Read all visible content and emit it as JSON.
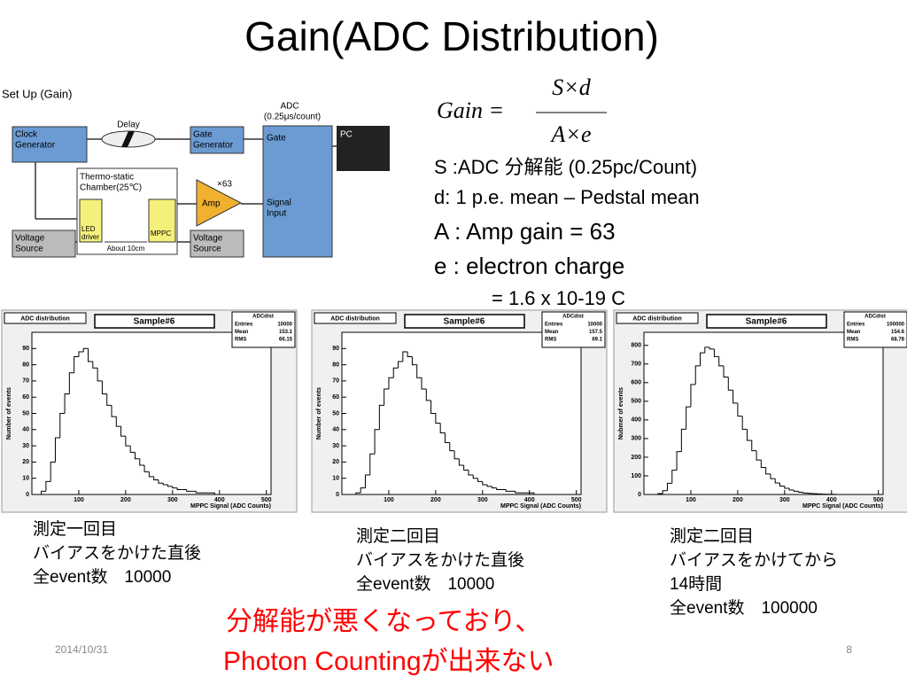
{
  "title": "Gain(ADC Distribution)",
  "setup": {
    "title": "Set Up (Gain)",
    "clock": [
      "Clock",
      "Generator"
    ],
    "delay": "Delay",
    "gate_generator": [
      "Gate",
      "Generator"
    ],
    "adc": [
      "ADC",
      "(0.25μs/count)"
    ],
    "gate": "Gate",
    "signal_input": [
      "Signal",
      "Input"
    ],
    "pc": "PC",
    "chamber": [
      "Thermo-static",
      "Chamber(25℃)"
    ],
    "led_driver": [
      "LED",
      "driver"
    ],
    "mppc": "MPPC",
    "distance": "About 10cm",
    "amp_factor": "×63",
    "amp": "Amp",
    "voltage_source_left": [
      "Voltage",
      "Source"
    ],
    "voltage_source_right": [
      "Voltage",
      "Source"
    ]
  },
  "formula": {
    "lhs": "Gain =",
    "numerator": "S×d",
    "denominator": "A×e"
  },
  "definitions": [
    "S :ADC  分解能 (0.25pc/Count)",
    "d: 1 p.e. mean – Pedstal mean",
    "A : Amp gain = 63",
    "e : electron charge",
    "= 1.6 x 10-19 C"
  ],
  "captions": [
    [
      "測定一回目",
      "バイアスをかけた直後",
      "全event数　10000"
    ],
    [
      "測定二回目",
      "バイアスをかけた直後",
      "全event数　10000"
    ],
    [
      "測定二回目",
      "バイアスをかけてから",
      "14時間",
      "全event数　100000"
    ]
  ],
  "conclusion": [
    "分解能が悪くなっており、",
    "Photon Countingが出来ない"
  ],
  "footer": {
    "date": "2014/10/31",
    "page": "8"
  },
  "chart_data": [
    {
      "type": "histogram",
      "title": "ADC distribution",
      "subtitle": "Sample#6",
      "stats": {
        "name": "ADCdist",
        "rows": [
          [
            "Entries",
            10000
          ],
          [
            "Mean",
            153.1
          ],
          [
            "RMS",
            66.15
          ]
        ]
      },
      "xlabel": "MPPC Signal (ADC Counts)",
      "ylabel": "Number of events",
      "color": "#000000",
      "bins": [
        0,
        10,
        20,
        30,
        40,
        50,
        60,
        70,
        80,
        90,
        100,
        110,
        120,
        130,
        140,
        150,
        160,
        170,
        180,
        190,
        200,
        210,
        220,
        230,
        240,
        250,
        260,
        270,
        280,
        290,
        300,
        310,
        320,
        330,
        340,
        350,
        360,
        370,
        380,
        390,
        400,
        410,
        420,
        430,
        440,
        450,
        460,
        470,
        480,
        490,
        500
      ],
      "counts": [
        0,
        0,
        2,
        8,
        20,
        35,
        50,
        62,
        75,
        85,
        88,
        90,
        82,
        78,
        70,
        62,
        55,
        48,
        42,
        36,
        30,
        26,
        22,
        18,
        14,
        11,
        9,
        7,
        6,
        5,
        4,
        3,
        3,
        2,
        2,
        1,
        1,
        1,
        1,
        0,
        0,
        0,
        0,
        0,
        0,
        0,
        0,
        0,
        0,
        0
      ],
      "xlim": [
        0,
        510
      ],
      "ylim": [
        0,
        100
      ],
      "xticks": [
        100,
        200,
        300,
        400,
        500
      ],
      "yticks": [
        0,
        10,
        20,
        30,
        40,
        50,
        60,
        70,
        80,
        90
      ]
    },
    {
      "type": "histogram",
      "title": "ADC distribution",
      "subtitle": "Sample#6",
      "stats": {
        "name": "ADCdist",
        "rows": [
          [
            "Entries",
            10000
          ],
          [
            "Mean",
            157.5
          ],
          [
            "RMS",
            69.1
          ]
        ]
      },
      "xlabel": "MPPC Signal (ADC Counts)",
      "ylabel": "Number of events",
      "color": "#000000",
      "bins": [
        0,
        10,
        20,
        30,
        40,
        50,
        60,
        70,
        80,
        90,
        100,
        110,
        120,
        130,
        140,
        150,
        160,
        170,
        180,
        190,
        200,
        210,
        220,
        230,
        240,
        250,
        260,
        270,
        280,
        290,
        300,
        310,
        320,
        330,
        340,
        350,
        360,
        370,
        380,
        390,
        400,
        410,
        420,
        430,
        440,
        450,
        460,
        470,
        480,
        490,
        500
      ],
      "counts": [
        0,
        0,
        0,
        1,
        4,
        12,
        25,
        40,
        55,
        65,
        72,
        78,
        82,
        88,
        85,
        80,
        72,
        65,
        58,
        50,
        44,
        38,
        32,
        27,
        22,
        18,
        15,
        12,
        10,
        8,
        6,
        5,
        4,
        3,
        3,
        2,
        2,
        1,
        1,
        1,
        1,
        0,
        0,
        0,
        0,
        0,
        0,
        0,
        0,
        0
      ],
      "xlim": [
        0,
        510
      ],
      "ylim": [
        0,
        100
      ],
      "xticks": [
        100,
        200,
        300,
        400,
        500
      ],
      "yticks": [
        0,
        10,
        20,
        30,
        40,
        50,
        60,
        70,
        80,
        90
      ]
    },
    {
      "type": "histogram",
      "title": "ADC distribution",
      "subtitle": "Sample#6",
      "stats": {
        "name": "ADCdist",
        "rows": [
          [
            "Entries",
            100000
          ],
          [
            "Mean",
            154.6
          ],
          [
            "RMS",
            68.78
          ]
        ]
      },
      "xlabel": "MPPC Signal (ADC Counts)",
      "ylabel": "Nubmer of events",
      "color": "#000000",
      "bins": [
        0,
        10,
        20,
        30,
        40,
        50,
        60,
        70,
        80,
        90,
        100,
        110,
        120,
        130,
        140,
        150,
        160,
        170,
        180,
        190,
        200,
        210,
        220,
        230,
        240,
        250,
        260,
        270,
        280,
        290,
        300,
        310,
        320,
        330,
        340,
        350,
        360,
        370,
        380,
        390,
        400,
        410,
        420,
        430,
        440,
        450,
        460,
        470,
        480,
        490,
        500
      ],
      "counts": [
        0,
        0,
        0,
        5,
        20,
        60,
        130,
        230,
        350,
        470,
        590,
        690,
        760,
        790,
        780,
        740,
        690,
        630,
        560,
        490,
        420,
        350,
        290,
        235,
        185,
        145,
        110,
        85,
        62,
        45,
        33,
        24,
        17,
        12,
        8,
        6,
        4,
        3,
        2,
        1,
        1,
        0,
        0,
        0,
        0,
        0,
        0,
        0,
        0,
        0
      ],
      "xlim": [
        0,
        510
      ],
      "ylim": [
        0,
        870
      ],
      "xticks": [
        100,
        200,
        300,
        400,
        500
      ],
      "yticks": [
        0,
        100,
        200,
        300,
        400,
        500,
        600,
        700,
        800
      ]
    }
  ]
}
